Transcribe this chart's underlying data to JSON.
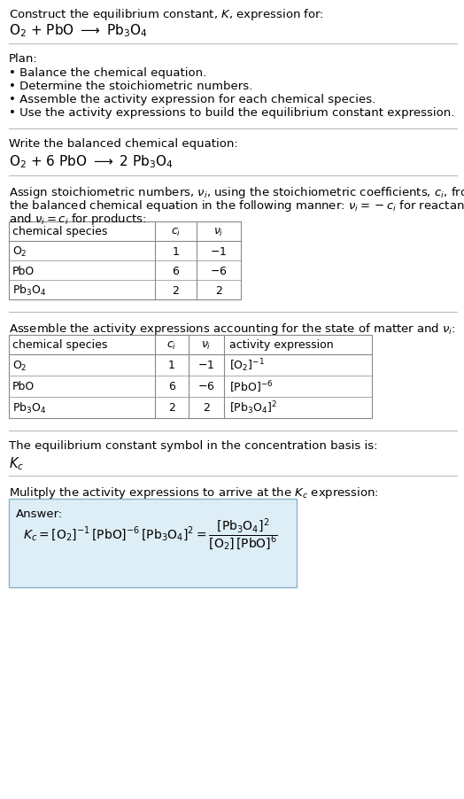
{
  "title_line1": "Construct the equilibrium constant, $K$, expression for:",
  "title_line2": "$\\mathrm{O_2}$ + PbO $\\longrightarrow$ $\\mathrm{Pb_3O_4}$",
  "plan_header": "Plan:",
  "plan_bullets": [
    "• Balance the chemical equation.",
    "• Determine the stoichiometric numbers.",
    "• Assemble the activity expression for each chemical species.",
    "• Use the activity expressions to build the equilibrium constant expression."
  ],
  "balanced_header": "Write the balanced chemical equation:",
  "balanced_eq": "$\\mathrm{O_2}$ + 6 PbO $\\longrightarrow$ 2 $\\mathrm{Pb_3O_4}$",
  "stoich_intro1": "Assign stoichiometric numbers, $\\nu_i$, using the stoichiometric coefficients, $c_i$, from",
  "stoich_intro2": "the balanced chemical equation in the following manner: $\\nu_i = -c_i$ for reactants",
  "stoich_intro3": "and $\\nu_i = c_i$ for products:",
  "table1_headers": [
    "chemical species",
    "$c_i$",
    "$\\nu_i$"
  ],
  "table1_rows": [
    [
      "$\\mathrm{O_2}$",
      "1",
      "$-1$"
    ],
    [
      "PbO",
      "6",
      "$-6$"
    ],
    [
      "$\\mathrm{Pb_3O_4}$",
      "2",
      "2"
    ]
  ],
  "assemble_header": "Assemble the activity expressions accounting for the state of matter and $\\nu_i$:",
  "table2_headers": [
    "chemical species",
    "$c_i$",
    "$\\nu_i$",
    "activity expression"
  ],
  "table2_rows": [
    [
      "$\\mathrm{O_2}$",
      "1",
      "$-1$",
      "$[\\mathrm{O_2}]^{-1}$"
    ],
    [
      "PbO",
      "6",
      "$-6$",
      "$[\\mathrm{PbO}]^{-6}$"
    ],
    [
      "$\\mathrm{Pb_3O_4}$",
      "2",
      "2",
      "$[\\mathrm{Pb_3O_4}]^2$"
    ]
  ],
  "Kc_intro": "The equilibrium constant symbol in the concentration basis is:",
  "Kc_symbol": "$K_c$",
  "multiply_intro": "Mulitply the activity expressions to arrive at the $K_c$ expression:",
  "answer_label": "Answer:",
  "answer_line1": "$K_c = [\\mathrm{O_2}]^{-1}\\,[\\mathrm{PbO}]^{-6}\\,[\\mathrm{Pb_3O_4}]^2 = \\dfrac{[\\mathrm{Pb_3O_4}]^2}{[\\mathrm{O_2}]\\,[\\mathrm{PbO}]^6}$",
  "bg_color": "#ffffff",
  "answer_box_bg": "#deeef6",
  "answer_box_border": "#8ab4cc",
  "sep_color": "#bbbbbb",
  "font_size": 9.5,
  "table_font_size": 9.0
}
